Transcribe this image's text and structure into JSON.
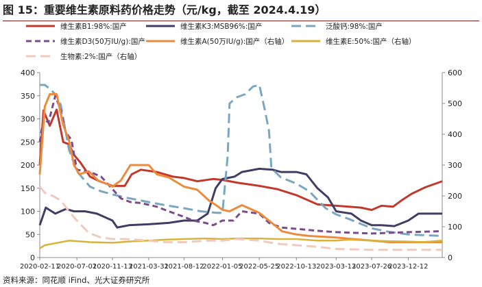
{
  "figure": {
    "title": "图 15：重要维生素原料药价格走势（元/kg，截至 2024.4.19）",
    "source": "资料来源：同花顺 iFind、光大证券研究所"
  },
  "colors": {
    "title_rule": "#8a1f1f",
    "axis": "#888888",
    "text": "#222222"
  },
  "chart_data": {
    "type": "line",
    "x_ticks": [
      "2020-02-11",
      "2020-07-01",
      "2020-11-13",
      "2021-03-31",
      "2021-08-12",
      "2022-01-05",
      "2022-05-25",
      "2022-10-13",
      "2023-03-13",
      "2023-07-26",
      "2023-12-12"
    ],
    "x_range": [
      "2020-02-11",
      "2024-04-19"
    ],
    "y_left": {
      "min": 0,
      "max": 400,
      "ticks": [
        0,
        50,
        100,
        150,
        200,
        250,
        300,
        350,
        400
      ]
    },
    "y_right": {
      "min": 0,
      "max": 600,
      "ticks": [
        0,
        100,
        200,
        300,
        400,
        500,
        600
      ]
    },
    "grid": false,
    "legend_position": "top",
    "series": [
      {
        "name": "维生素B1:98%:国产",
        "axis": "left",
        "color": "#c0392b",
        "dash": "solid",
        "width": 3,
        "points": [
          [
            "2020-02-11",
            200
          ],
          [
            "2020-02-25",
            318
          ],
          [
            "2020-03-20",
            285
          ],
          [
            "2020-04-15",
            320
          ],
          [
            "2020-05-10",
            250
          ],
          [
            "2020-06-01",
            245
          ],
          [
            "2020-06-20",
            222
          ],
          [
            "2020-07-15",
            205
          ],
          [
            "2020-08-20",
            175
          ],
          [
            "2020-09-25",
            165
          ],
          [
            "2020-11-13",
            155
          ],
          [
            "2020-12-30",
            155
          ],
          [
            "2021-01-25",
            180
          ],
          [
            "2021-03-01",
            190
          ],
          [
            "2021-05-01",
            185
          ],
          [
            "2021-07-01",
            175
          ],
          [
            "2021-08-12",
            172
          ],
          [
            "2021-10-01",
            165
          ],
          [
            "2021-12-01",
            170
          ],
          [
            "2022-01-05",
            168
          ],
          [
            "2022-03-01",
            162
          ],
          [
            "2022-05-25",
            155
          ],
          [
            "2022-08-01",
            148
          ],
          [
            "2022-10-13",
            135
          ],
          [
            "2023-01-01",
            115
          ],
          [
            "2023-03-13",
            112
          ],
          [
            "2023-05-01",
            110
          ],
          [
            "2023-06-15",
            108
          ],
          [
            "2023-07-26",
            103
          ],
          [
            "2023-09-01",
            112
          ],
          [
            "2023-10-15",
            110
          ],
          [
            "2023-11-20",
            125
          ],
          [
            "2023-12-25",
            138
          ],
          [
            "2024-02-15",
            152
          ],
          [
            "2024-04-19",
            165
          ]
        ]
      },
      {
        "name": "维生素K3:MSB96%:国产",
        "axis": "left",
        "color": "#3f3d63",
        "dash": "solid",
        "width": 3,
        "points": [
          [
            "2020-02-11",
            70
          ],
          [
            "2020-03-05",
            108
          ],
          [
            "2020-04-10",
            95
          ],
          [
            "2020-05-20",
            105
          ],
          [
            "2020-06-20",
            100
          ],
          [
            "2020-08-01",
            100
          ],
          [
            "2020-09-15",
            95
          ],
          [
            "2020-11-13",
            80
          ],
          [
            "2020-12-01",
            65
          ],
          [
            "2021-01-15",
            70
          ],
          [
            "2021-03-31",
            72
          ],
          [
            "2021-06-15",
            75
          ],
          [
            "2021-08-12",
            80
          ],
          [
            "2021-10-01",
            80
          ],
          [
            "2021-11-10",
            95
          ],
          [
            "2021-12-10",
            150
          ],
          [
            "2022-01-05",
            170
          ],
          [
            "2022-02-20",
            175
          ],
          [
            "2022-03-20",
            185
          ],
          [
            "2022-05-25",
            192
          ],
          [
            "2022-07-15",
            190
          ],
          [
            "2022-08-15",
            185
          ],
          [
            "2022-10-13",
            185
          ],
          [
            "2022-11-20",
            180
          ],
          [
            "2023-01-01",
            150
          ],
          [
            "2023-02-10",
            130
          ],
          [
            "2023-03-13",
            100
          ],
          [
            "2023-05-10",
            95
          ],
          [
            "2023-06-15",
            80
          ],
          [
            "2023-07-26",
            70
          ],
          [
            "2023-09-01",
            70
          ],
          [
            "2023-10-20",
            68
          ],
          [
            "2023-12-12",
            80
          ],
          [
            "2024-01-20",
            95
          ],
          [
            "2024-04-19",
            95
          ]
        ]
      },
      {
        "name": "泛酸钙:98%:国产",
        "axis": "right",
        "color": "#7aa6c2",
        "dash": "dash-long",
        "width": 3,
        "points": [
          [
            "2020-02-11",
            560
          ],
          [
            "2020-03-01",
            560
          ],
          [
            "2020-03-20",
            548
          ],
          [
            "2020-04-15",
            525
          ],
          [
            "2020-05-01",
            495
          ],
          [
            "2020-06-01",
            350
          ],
          [
            "2020-07-01",
            280
          ],
          [
            "2020-08-20",
            230
          ],
          [
            "2020-10-01",
            215
          ],
          [
            "2020-11-13",
            205
          ],
          [
            "2021-01-01",
            195
          ],
          [
            "2021-03-31",
            180
          ],
          [
            "2021-06-01",
            170
          ],
          [
            "2021-08-12",
            160
          ],
          [
            "2021-10-15",
            150
          ],
          [
            "2021-12-15",
            145
          ],
          [
            "2022-01-05",
            145
          ],
          [
            "2022-01-25",
            330
          ],
          [
            "2022-02-01",
            500
          ],
          [
            "2022-03-01",
            520
          ],
          [
            "2022-04-01",
            530
          ],
          [
            "2022-05-01",
            555
          ],
          [
            "2022-05-25",
            560
          ],
          [
            "2022-06-15",
            480
          ],
          [
            "2022-07-01",
            410
          ],
          [
            "2022-07-10",
            290
          ],
          [
            "2022-08-15",
            260
          ],
          [
            "2022-10-13",
            240
          ],
          [
            "2022-12-01",
            215
          ],
          [
            "2023-02-01",
            160
          ],
          [
            "2023-03-13",
            140
          ],
          [
            "2023-05-01",
            125
          ],
          [
            "2023-07-26",
            95
          ],
          [
            "2023-09-20",
            85
          ],
          [
            "2023-12-12",
            75
          ],
          [
            "2024-04-19",
            70
          ]
        ]
      },
      {
        "name": "维生素D3(50万IU/g):国产",
        "axis": "left",
        "color": "#7a4b8c",
        "dash": "dash-medium",
        "width": 3,
        "points": [
          [
            "2020-02-11",
            250
          ],
          [
            "2020-02-25",
            300
          ],
          [
            "2020-03-15",
            292
          ],
          [
            "2020-04-10",
            350
          ],
          [
            "2020-04-30",
            320
          ],
          [
            "2020-05-20",
            270
          ],
          [
            "2020-06-10",
            255
          ],
          [
            "2020-07-01",
            190
          ],
          [
            "2020-08-20",
            185
          ],
          [
            "2020-10-01",
            175
          ],
          [
            "2020-11-13",
            148
          ],
          [
            "2020-12-15",
            128
          ],
          [
            "2021-01-20",
            120
          ],
          [
            "2021-03-01",
            118
          ],
          [
            "2021-05-01",
            110
          ],
          [
            "2021-06-15",
            100
          ],
          [
            "2021-08-12",
            88
          ],
          [
            "2021-09-15",
            80
          ],
          [
            "2021-11-01",
            75
          ],
          [
            "2021-12-01",
            70
          ],
          [
            "2022-01-05",
            80
          ],
          [
            "2022-02-15",
            80
          ],
          [
            "2022-03-20",
            100
          ],
          [
            "2022-05-25",
            95
          ],
          [
            "2022-07-01",
            75
          ],
          [
            "2022-08-15",
            65
          ],
          [
            "2022-10-13",
            62
          ],
          [
            "2023-01-01",
            58
          ],
          [
            "2023-03-13",
            55
          ],
          [
            "2023-07-26",
            52
          ],
          [
            "2023-12-12",
            55
          ],
          [
            "2024-04-19",
            57
          ]
        ]
      },
      {
        "name": "维生素A(50万IU/g):国产（右轴）",
        "axis": "right",
        "color": "#ee8a3c",
        "dash": "solid",
        "width": 3,
        "points": [
          [
            "2020-02-11",
            270
          ],
          [
            "2020-03-01",
            490
          ],
          [
            "2020-03-20",
            530
          ],
          [
            "2020-04-15",
            530
          ],
          [
            "2020-05-10",
            430
          ],
          [
            "2020-06-01",
            380
          ],
          [
            "2020-06-20",
            300
          ],
          [
            "2020-07-10",
            270
          ],
          [
            "2020-08-15",
            280
          ],
          [
            "2020-09-20",
            250
          ],
          [
            "2020-10-20",
            240
          ],
          [
            "2020-11-13",
            230
          ],
          [
            "2020-12-15",
            250
          ],
          [
            "2021-01-20",
            300
          ],
          [
            "2021-03-31",
            300
          ],
          [
            "2021-05-01",
            270
          ],
          [
            "2021-06-15",
            260
          ],
          [
            "2021-08-12",
            230
          ],
          [
            "2021-10-01",
            220
          ],
          [
            "2021-11-15",
            185
          ],
          [
            "2021-12-20",
            165
          ],
          [
            "2022-01-05",
            155
          ],
          [
            "2022-02-01",
            150
          ],
          [
            "2022-03-20",
            170
          ],
          [
            "2022-05-25",
            145
          ],
          [
            "2022-07-15",
            110
          ],
          [
            "2022-08-20",
            85
          ],
          [
            "2022-10-13",
            75
          ],
          [
            "2022-12-01",
            70
          ],
          [
            "2023-03-13",
            65
          ],
          [
            "2023-05-15",
            60
          ],
          [
            "2023-07-26",
            55
          ],
          [
            "2023-10-01",
            50
          ],
          [
            "2023-12-12",
            50
          ],
          [
            "2024-04-19",
            50
          ]
        ]
      },
      {
        "name": "维生素E:50%:国产（右轴）",
        "axis": "right",
        "color": "#d9b23a",
        "dash": "solid",
        "width": 2.5,
        "points": [
          [
            "2020-02-11",
            30
          ],
          [
            "2020-03-01",
            40
          ],
          [
            "2020-06-01",
            55
          ],
          [
            "2020-08-20",
            50
          ],
          [
            "2020-11-13",
            48
          ],
          [
            "2021-01-15",
            52
          ],
          [
            "2021-03-31",
            55
          ],
          [
            "2021-06-01",
            58
          ],
          [
            "2021-08-12",
            60
          ],
          [
            "2021-11-01",
            62
          ],
          [
            "2022-01-05",
            60
          ],
          [
            "2022-03-01",
            62
          ],
          [
            "2022-05-25",
            62
          ],
          [
            "2022-08-01",
            60
          ],
          [
            "2022-10-13",
            60
          ],
          [
            "2023-01-01",
            55
          ],
          [
            "2023-03-13",
            55
          ],
          [
            "2023-05-01",
            58
          ],
          [
            "2023-07-26",
            55
          ],
          [
            "2023-10-01",
            53
          ],
          [
            "2023-12-12",
            52
          ],
          [
            "2024-02-01",
            50
          ],
          [
            "2024-04-19",
            55
          ]
        ]
      },
      {
        "name": "生物素:2%:国产（右轴）",
        "axis": "right",
        "color": "#f2c9bd",
        "dash": "dash-long",
        "width": 3,
        "points": [
          [
            "2020-02-11",
            230
          ],
          [
            "2020-03-01",
            210
          ],
          [
            "2020-04-01",
            200
          ],
          [
            "2020-05-01",
            185
          ],
          [
            "2020-06-01",
            150
          ],
          [
            "2020-07-01",
            120
          ],
          [
            "2020-08-15",
            80
          ],
          [
            "2020-10-01",
            65
          ],
          [
            "2020-11-13",
            60
          ],
          [
            "2021-01-01",
            60
          ],
          [
            "2021-03-31",
            55
          ],
          [
            "2021-06-01",
            50
          ],
          [
            "2021-08-12",
            50
          ],
          [
            "2021-11-01",
            55
          ],
          [
            "2022-01-05",
            55
          ],
          [
            "2022-03-01",
            60
          ],
          [
            "2022-05-25",
            55
          ],
          [
            "2022-08-01",
            45
          ],
          [
            "2022-10-13",
            40
          ],
          [
            "2023-01-01",
            35
          ],
          [
            "2023-03-13",
            28
          ],
          [
            "2023-07-26",
            25
          ],
          [
            "2023-12-12",
            25
          ],
          [
            "2024-04-19",
            25
          ]
        ]
      }
    ]
  }
}
